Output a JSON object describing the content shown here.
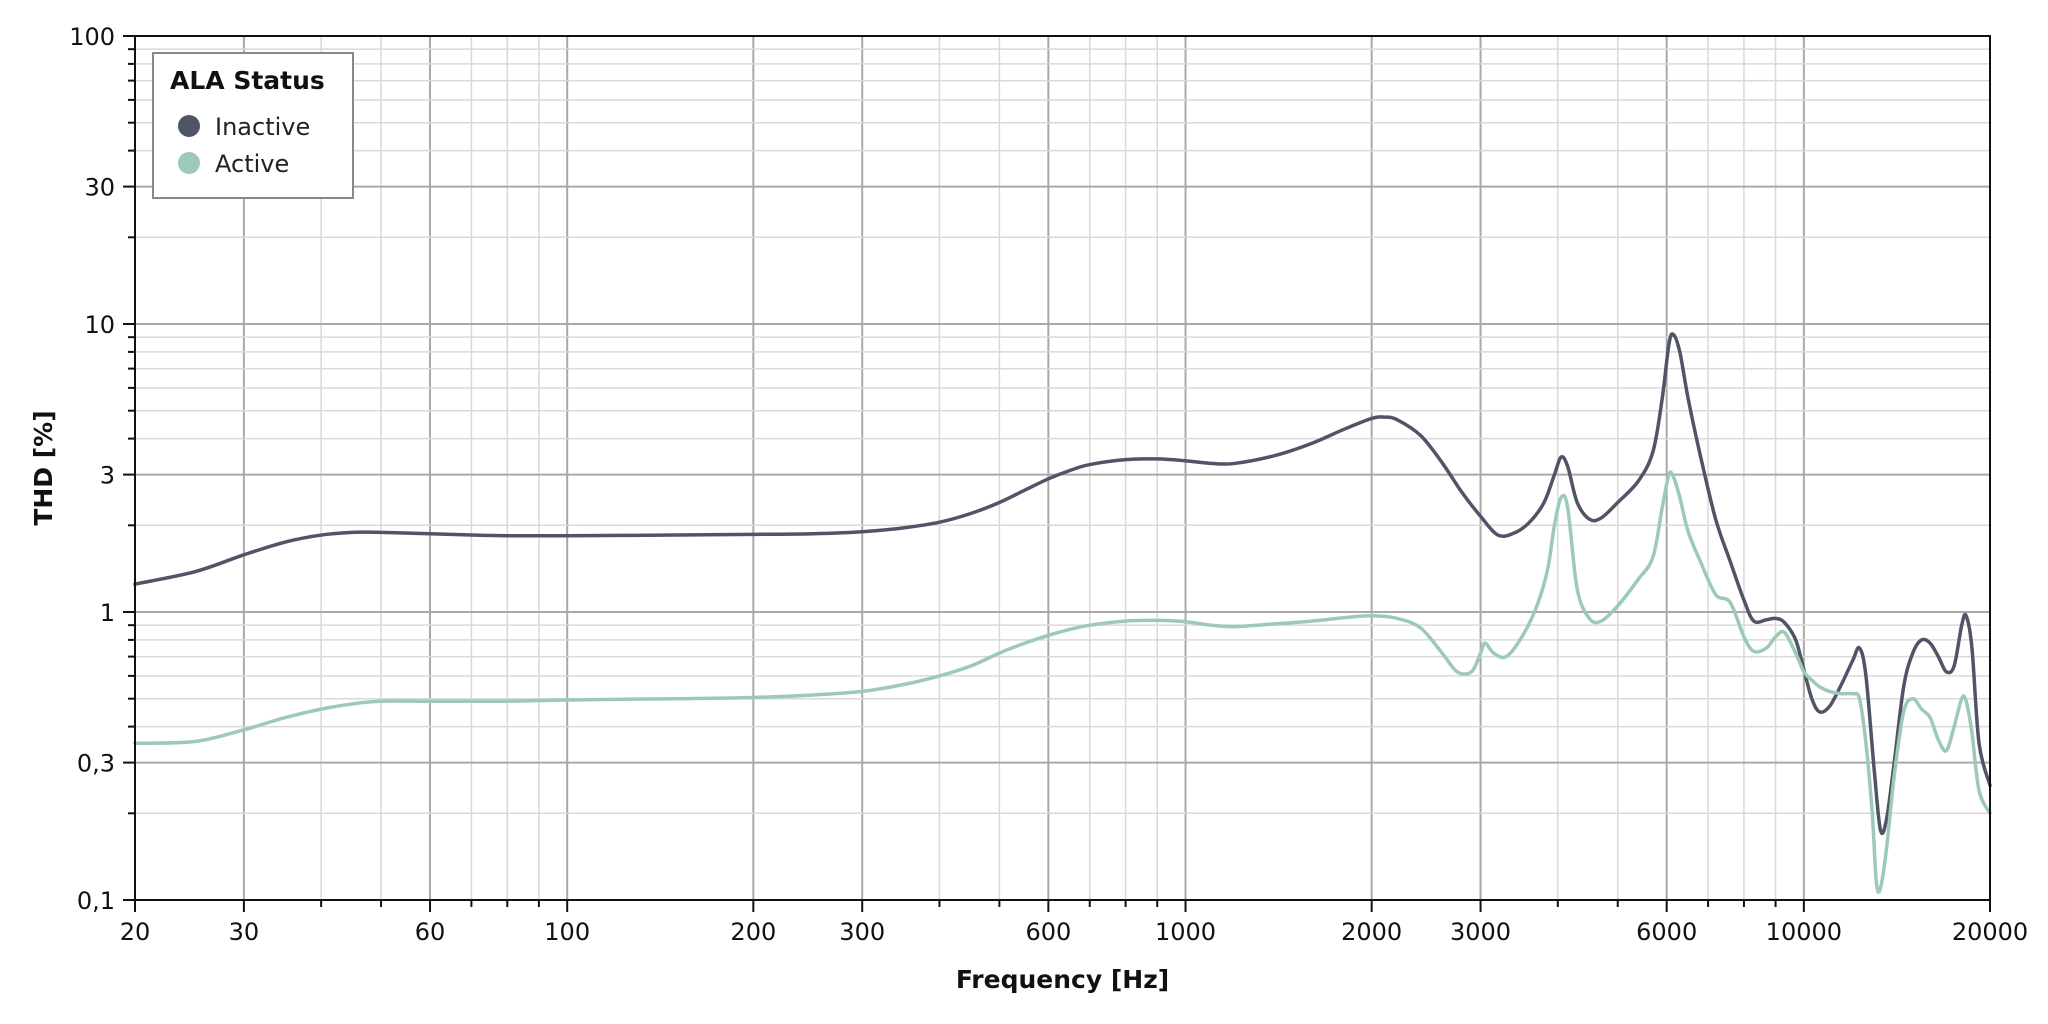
{
  "chart_data": {
    "type": "line",
    "title": "",
    "xlabel": "Frequency [Hz]",
    "ylabel": "THD [%]",
    "x_scale": "log",
    "y_scale": "log",
    "xlim": [
      20,
      20000
    ],
    "ylim": [
      0.1,
      100
    ],
    "grid": true,
    "x_ticks": [
      {
        "value": 20,
        "label": "20"
      },
      {
        "value": 30,
        "label": "30"
      },
      {
        "value": 60,
        "label": "60"
      },
      {
        "value": 100,
        "label": "100"
      },
      {
        "value": 200,
        "label": "200"
      },
      {
        "value": 300,
        "label": "300"
      },
      {
        "value": 600,
        "label": "600"
      },
      {
        "value": 1000,
        "label": "1000"
      },
      {
        "value": 2000,
        "label": "2000"
      },
      {
        "value": 3000,
        "label": "3000"
      },
      {
        "value": 6000,
        "label": "6000"
      },
      {
        "value": 10000,
        "label": "10000"
      },
      {
        "value": 20000,
        "label": "20000"
      }
    ],
    "y_ticks": [
      {
        "value": 0.1,
        "label": "0,1"
      },
      {
        "value": 0.3,
        "label": "0,3"
      },
      {
        "value": 1,
        "label": "1"
      },
      {
        "value": 3,
        "label": "3"
      },
      {
        "value": 10,
        "label": "10"
      },
      {
        "value": 30,
        "label": "30"
      },
      {
        "value": 100,
        "label": "100"
      }
    ],
    "legend": {
      "title": "ALA Status",
      "position": "top-left"
    },
    "series": [
      {
        "name": "Inactive",
        "color": "#4f5566",
        "points": [
          [
            20,
            1.25
          ],
          [
            25,
            1.38
          ],
          [
            30,
            1.58
          ],
          [
            35,
            1.75
          ],
          [
            40,
            1.85
          ],
          [
            45,
            1.89
          ],
          [
            50,
            1.89
          ],
          [
            60,
            1.87
          ],
          [
            70,
            1.85
          ],
          [
            80,
            1.84
          ],
          [
            100,
            1.84
          ],
          [
            150,
            1.85
          ],
          [
            200,
            1.86
          ],
          [
            250,
            1.87
          ],
          [
            300,
            1.9
          ],
          [
            350,
            1.96
          ],
          [
            400,
            2.05
          ],
          [
            450,
            2.2
          ],
          [
            500,
            2.4
          ],
          [
            550,
            2.65
          ],
          [
            600,
            2.9
          ],
          [
            650,
            3.1
          ],
          [
            700,
            3.25
          ],
          [
            800,
            3.38
          ],
          [
            900,
            3.4
          ],
          [
            1000,
            3.35
          ],
          [
            1100,
            3.28
          ],
          [
            1200,
            3.28
          ],
          [
            1400,
            3.5
          ],
          [
            1600,
            3.85
          ],
          [
            1800,
            4.3
          ],
          [
            2000,
            4.7
          ],
          [
            2100,
            4.75
          ],
          [
            2200,
            4.65
          ],
          [
            2400,
            4.1
          ],
          [
            2600,
            3.3
          ],
          [
            2800,
            2.6
          ],
          [
            3000,
            2.15
          ],
          [
            3200,
            1.85
          ],
          [
            3400,
            1.88
          ],
          [
            3600,
            2.05
          ],
          [
            3800,
            2.4
          ],
          [
            3950,
            3.0
          ],
          [
            4050,
            3.45
          ],
          [
            4150,
            3.2
          ],
          [
            4300,
            2.4
          ],
          [
            4500,
            2.1
          ],
          [
            4700,
            2.12
          ],
          [
            5000,
            2.4
          ],
          [
            5400,
            2.85
          ],
          [
            5700,
            3.6
          ],
          [
            5900,
            5.5
          ],
          [
            6050,
            8.5
          ],
          [
            6150,
            9.2
          ],
          [
            6300,
            8.0
          ],
          [
            6500,
            5.5
          ],
          [
            6800,
            3.5
          ],
          [
            7200,
            2.1
          ],
          [
            7600,
            1.5
          ],
          [
            8000,
            1.1
          ],
          [
            8300,
            0.93
          ],
          [
            8700,
            0.94
          ],
          [
            9000,
            0.95
          ],
          [
            9300,
            0.92
          ],
          [
            9700,
            0.8
          ],
          [
            10000,
            0.63
          ],
          [
            10300,
            0.5
          ],
          [
            10600,
            0.45
          ],
          [
            11000,
            0.47
          ],
          [
            11500,
            0.56
          ],
          [
            12000,
            0.68
          ],
          [
            12300,
            0.75
          ],
          [
            12600,
            0.6
          ],
          [
            13000,
            0.28
          ],
          [
            13300,
            0.175
          ],
          [
            13600,
            0.19
          ],
          [
            14000,
            0.3
          ],
          [
            14500,
            0.55
          ],
          [
            15000,
            0.72
          ],
          [
            15500,
            0.8
          ],
          [
            16000,
            0.78
          ],
          [
            16500,
            0.7
          ],
          [
            17000,
            0.62
          ],
          [
            17500,
            0.65
          ],
          [
            18000,
            0.9
          ],
          [
            18300,
            0.97
          ],
          [
            18700,
            0.75
          ],
          [
            19200,
            0.35
          ],
          [
            20000,
            0.25
          ]
        ]
      },
      {
        "name": "Active",
        "color": "#9cc9b8",
        "points": [
          [
            20,
            0.35
          ],
          [
            25,
            0.355
          ],
          [
            30,
            0.39
          ],
          [
            35,
            0.43
          ],
          [
            40,
            0.46
          ],
          [
            45,
            0.48
          ],
          [
            50,
            0.49
          ],
          [
            60,
            0.49
          ],
          [
            80,
            0.49
          ],
          [
            100,
            0.495
          ],
          [
            150,
            0.5
          ],
          [
            200,
            0.505
          ],
          [
            250,
            0.515
          ],
          [
            300,
            0.53
          ],
          [
            350,
            0.56
          ],
          [
            400,
            0.6
          ],
          [
            450,
            0.65
          ],
          [
            500,
            0.72
          ],
          [
            550,
            0.78
          ],
          [
            600,
            0.83
          ],
          [
            650,
            0.87
          ],
          [
            700,
            0.9
          ],
          [
            800,
            0.93
          ],
          [
            900,
            0.935
          ],
          [
            1000,
            0.925
          ],
          [
            1100,
            0.9
          ],
          [
            1200,
            0.89
          ],
          [
            1400,
            0.91
          ],
          [
            1600,
            0.93
          ],
          [
            1800,
            0.955
          ],
          [
            2000,
            0.97
          ],
          [
            2200,
            0.95
          ],
          [
            2400,
            0.88
          ],
          [
            2600,
            0.72
          ],
          [
            2750,
            0.62
          ],
          [
            2900,
            0.62
          ],
          [
            3000,
            0.72
          ],
          [
            3050,
            0.78
          ],
          [
            3150,
            0.72
          ],
          [
            3300,
            0.7
          ],
          [
            3500,
            0.82
          ],
          [
            3700,
            1.05
          ],
          [
            3850,
            1.4
          ],
          [
            3950,
            2.0
          ],
          [
            4050,
            2.5
          ],
          [
            4150,
            2.3
          ],
          [
            4300,
            1.2
          ],
          [
            4500,
            0.95
          ],
          [
            4700,
            0.93
          ],
          [
            5000,
            1.05
          ],
          [
            5400,
            1.3
          ],
          [
            5700,
            1.55
          ],
          [
            5900,
            2.3
          ],
          [
            6050,
            3.0
          ],
          [
            6150,
            2.95
          ],
          [
            6300,
            2.5
          ],
          [
            6500,
            1.9
          ],
          [
            6800,
            1.5
          ],
          [
            7200,
            1.15
          ],
          [
            7600,
            1.08
          ],
          [
            8000,
            0.82
          ],
          [
            8300,
            0.73
          ],
          [
            8700,
            0.75
          ],
          [
            9000,
            0.82
          ],
          [
            9300,
            0.85
          ],
          [
            9700,
            0.72
          ],
          [
            10000,
            0.62
          ],
          [
            10300,
            0.58
          ],
          [
            10600,
            0.55
          ],
          [
            11000,
            0.53
          ],
          [
            11500,
            0.52
          ],
          [
            12000,
            0.52
          ],
          [
            12300,
            0.5
          ],
          [
            12600,
            0.35
          ],
          [
            12900,
            0.2
          ],
          [
            13100,
            0.115
          ],
          [
            13300,
            0.11
          ],
          [
            13600,
            0.15
          ],
          [
            14000,
            0.27
          ],
          [
            14500,
            0.45
          ],
          [
            15000,
            0.5
          ],
          [
            15500,
            0.46
          ],
          [
            16000,
            0.43
          ],
          [
            16500,
            0.36
          ],
          [
            17000,
            0.33
          ],
          [
            17500,
            0.4
          ],
          [
            18000,
            0.5
          ],
          [
            18300,
            0.49
          ],
          [
            18700,
            0.38
          ],
          [
            19200,
            0.24
          ],
          [
            20000,
            0.2
          ]
        ]
      }
    ]
  }
}
